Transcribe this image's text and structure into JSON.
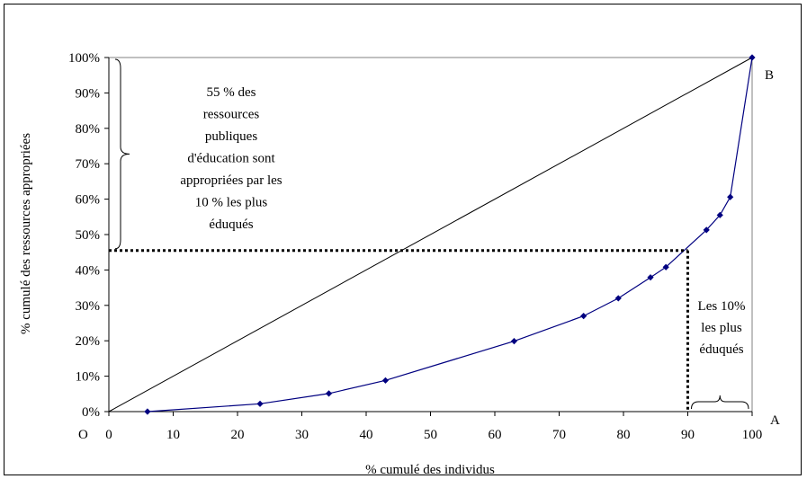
{
  "chart_data": {
    "type": "line",
    "xlabel": "% cumulé des individus",
    "ylabel": "% cumulé des ressources appropriées",
    "xlim": [
      0,
      100
    ],
    "ylim": [
      0,
      100
    ],
    "x_ticks": [
      0,
      10,
      20,
      30,
      40,
      50,
      60,
      70,
      80,
      90,
      100
    ],
    "y_ticks": [
      "0%",
      "10%",
      "20%",
      "30%",
      "40%",
      "50%",
      "60%",
      "70%",
      "80%",
      "90%",
      "100%"
    ],
    "grid": false,
    "series": [
      {
        "values_xy": [
          [
            6,
            0
          ],
          [
            23.5,
            2.2
          ],
          [
            34.2,
            5.1
          ],
          [
            43,
            8.8
          ],
          [
            63,
            19.9
          ],
          [
            73.8,
            27
          ],
          [
            79.2,
            32
          ],
          [
            84.2,
            37.9
          ],
          [
            86.6,
            40.8
          ],
          [
            92.9,
            51.3
          ],
          [
            95,
            55.5
          ],
          [
            96.6,
            60.6
          ],
          [
            100,
            100
          ]
        ],
        "color": "#000080"
      },
      {
        "values_xy": [
          [
            0,
            0
          ],
          [
            100,
            100
          ]
        ],
        "color": "#000000"
      }
    ],
    "reference_lines": {
      "y_level": 45.5,
      "x_level": 90
    },
    "annotations": {
      "origin": "O",
      "point_a": "A",
      "point_b": "B",
      "left_note": [
        "55 % des",
        "ressources",
        "publiques",
        "d'éducation sont",
        "appropriées par les",
        "10 % les plus",
        "éduqués"
      ],
      "right_note": [
        "Les 10%",
        "les plus",
        "éduqués"
      ]
    }
  }
}
